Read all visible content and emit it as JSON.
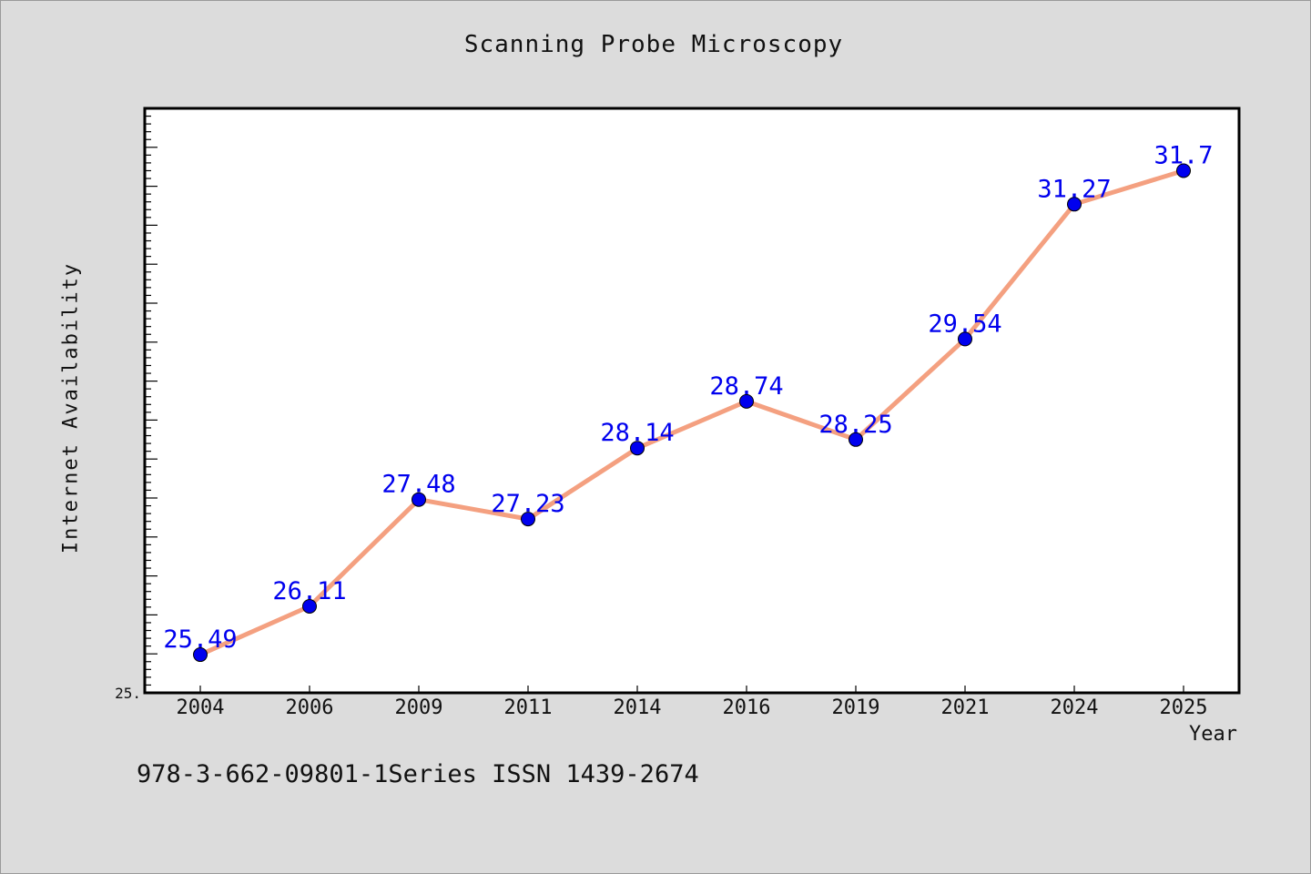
{
  "chart_data": {
    "type": "line",
    "title": "Scanning Probe Microscopy",
    "xlabel": "Year",
    "ylabel": "Internet Availability",
    "categories": [
      "2004",
      "2006",
      "2009",
      "2011",
      "2014",
      "2016",
      "2019",
      "2021",
      "2024",
      "2025"
    ],
    "series": [
      {
        "values": [
          25.49,
          26.11,
          27.48,
          27.23,
          28.14,
          28.74,
          28.25,
          29.54,
          31.27,
          31.7
        ],
        "data_labels": [
          "25.49",
          "26.11",
          "27.48",
          "27.23",
          "28.14",
          "28.74",
          "28.25",
          "29.54",
          "31.27",
          "31.7"
        ],
        "line_color": "#f4a080",
        "marker_color": "#0000ee",
        "label_color": "#0000ee"
      }
    ],
    "ylim": [
      25.0,
      32.5
    ],
    "y_tick_labels": [
      "25."
    ],
    "grid": false,
    "legend": "none"
  },
  "footer": "978-3-662-09801-1Series ISSN 1439-2674"
}
